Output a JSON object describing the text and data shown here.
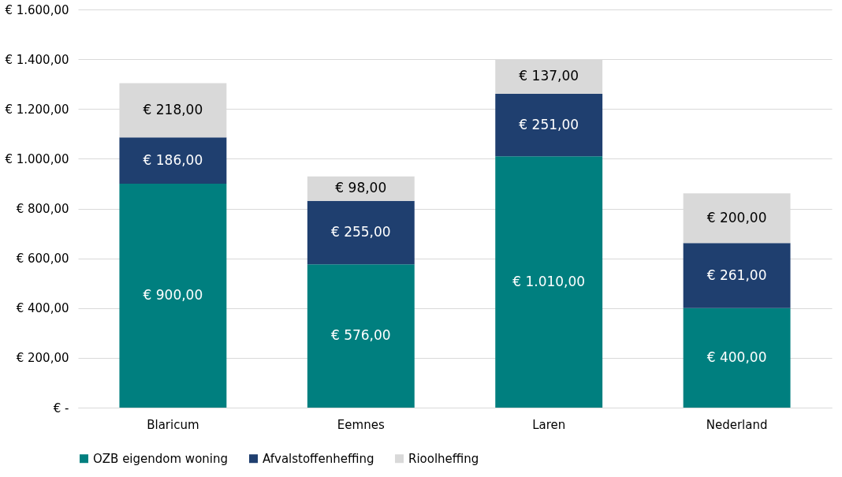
{
  "chart_data": {
    "type": "bar",
    "stacked": true,
    "categories": [
      "Blaricum",
      "Eemnes",
      "Laren",
      "Nederland"
    ],
    "series": [
      {
        "name": "OZB eigendom woning",
        "color": "#007f7f",
        "values": [
          900,
          576,
          1010,
          400
        ],
        "value_labels": [
          "€ 900,00",
          "€ 576,00",
          "€ 1.010,00",
          "€ 400,00"
        ]
      },
      {
        "name": "Afvalstoffenheffing",
        "color": "#1f3f6f",
        "values": [
          186,
          255,
          251,
          261
        ],
        "value_labels": [
          "€ 186,00",
          "€ 255,00",
          "€ 251,00",
          "€ 261,00"
        ]
      },
      {
        "name": "Rioolheffing",
        "color": "#d9d9d9",
        "values": [
          218,
          98,
          137,
          200
        ],
        "value_labels": [
          "€ 218,00",
          "€ 98,00",
          "€ 137,00",
          "€ 200,00"
        ]
      }
    ],
    "ylim": [
      0,
      1600
    ],
    "yticks": [
      {
        "value": 0,
        "label": "€ -"
      },
      {
        "value": 200,
        "label": "€ 200,00"
      },
      {
        "value": 400,
        "label": "€ 400,00"
      },
      {
        "value": 600,
        "label": "€ 600,00"
      },
      {
        "value": 800,
        "label": "€ 800,00"
      },
      {
        "value": 1000,
        "label": "€ 1.000,00"
      },
      {
        "value": 1200,
        "label": "€ 1.200,00"
      },
      {
        "value": 1400,
        "label": "€ 1.400,00"
      },
      {
        "value": 1600,
        "label": "€ 1.600,00"
      }
    ],
    "grid": "y",
    "legend": "bottom"
  }
}
